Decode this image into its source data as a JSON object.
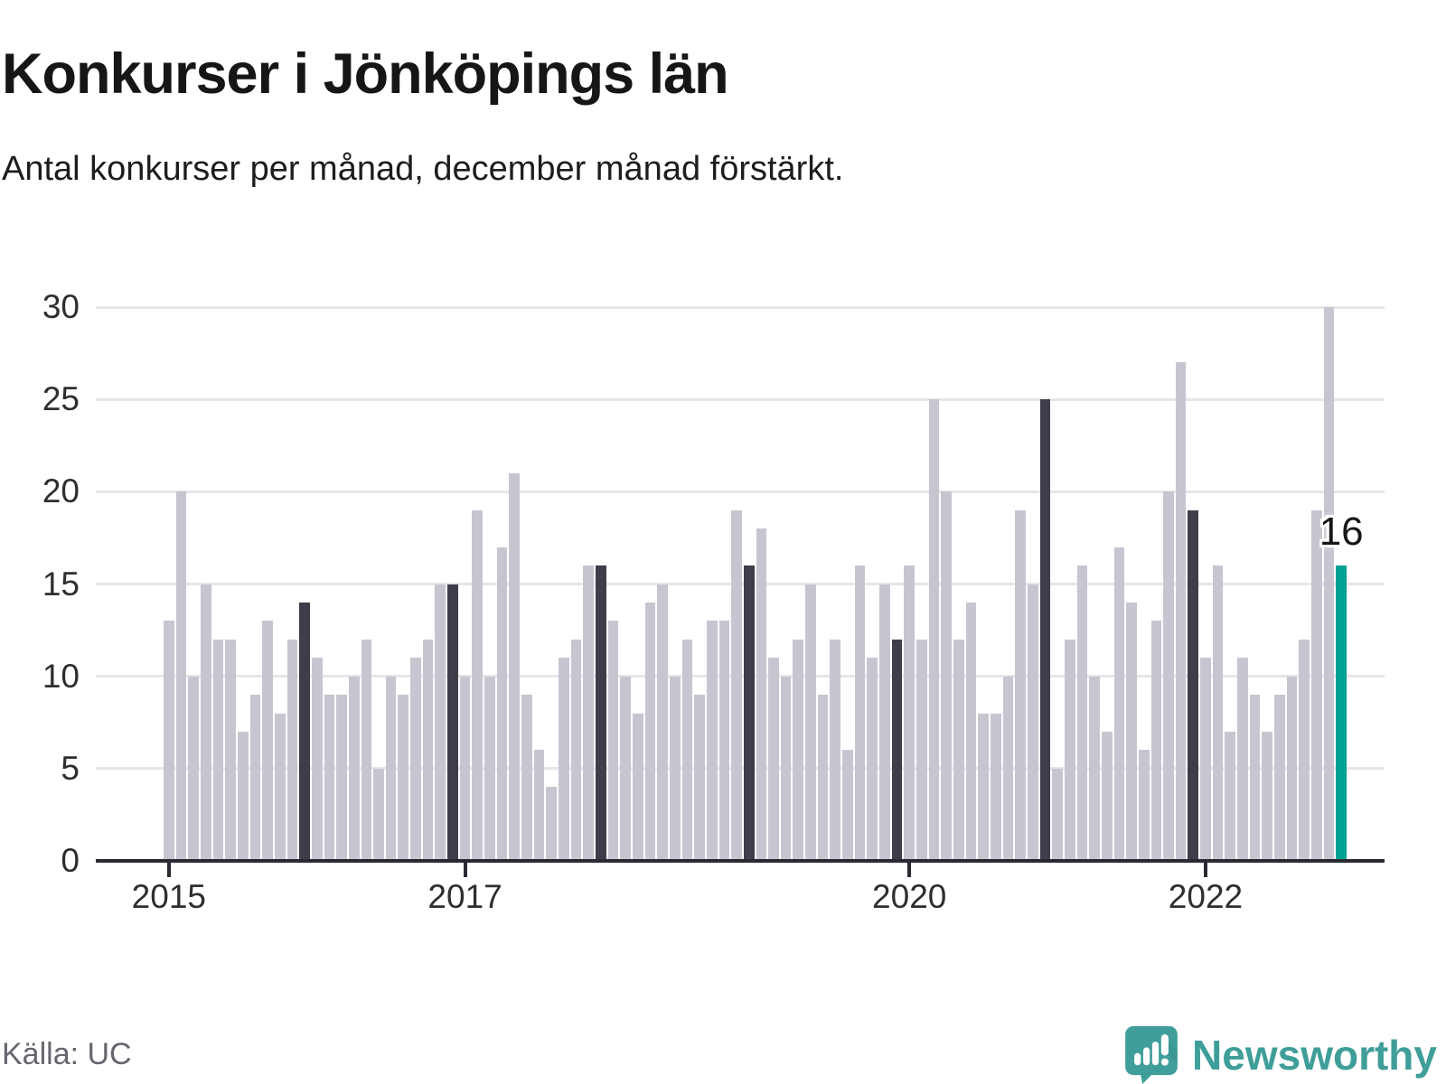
{
  "title": "Konkurser i Jönköpings län",
  "subtitle": "Antal konkurser per månad, december månad förstärkt.",
  "source": "Källa: UC",
  "brand": {
    "name": "Newsworthy"
  },
  "chart_data": {
    "type": "bar",
    "title": "Konkurser i Jönköpings län",
    "x_unit": "month",
    "start": "2015-01",
    "end": "2022-12",
    "values": [
      13,
      20,
      10,
      15,
      12,
      12,
      7,
      9,
      13,
      8,
      12,
      14,
      11,
      9,
      9,
      10,
      12,
      5,
      10,
      9,
      11,
      12,
      15,
      15,
      10,
      19,
      10,
      17,
      21,
      9,
      6,
      4,
      11,
      12,
      16,
      16,
      13,
      10,
      8,
      14,
      15,
      10,
      12,
      9,
      13,
      13,
      19,
      16,
      18,
      11,
      10,
      12,
      15,
      9,
      12,
      6,
      16,
      11,
      15,
      12,
      16,
      12,
      25,
      20,
      12,
      14,
      8,
      8,
      10,
      19,
      15,
      25,
      5,
      12,
      16,
      10,
      7,
      17,
      14,
      6,
      13,
      20,
      27,
      19,
      11,
      16,
      7,
      11,
      9,
      7,
      9,
      10,
      12,
      19,
      30,
      16
    ],
    "x_ticks": [
      {
        "label": "2015",
        "month_index": 0
      },
      {
        "label": "2017",
        "month_index": 24
      },
      {
        "label": "2020",
        "month_index": 60
      },
      {
        "label": "2022",
        "month_index": 84
      }
    ],
    "y_ticks": [
      0,
      5,
      10,
      15,
      20,
      25,
      30
    ],
    "ylim": [
      0,
      30
    ],
    "grid": true,
    "december_emphasized": true,
    "latest": {
      "index": 95,
      "value": 16,
      "label": "16"
    },
    "colors": {
      "bar": "#c8c5d1",
      "december_bar": "#3e3d4a",
      "latest_bar": "#00a294",
      "gridline": "#e6e5e8",
      "axis": "#2b2a33",
      "brand_teal": "#3f9e99"
    }
  }
}
